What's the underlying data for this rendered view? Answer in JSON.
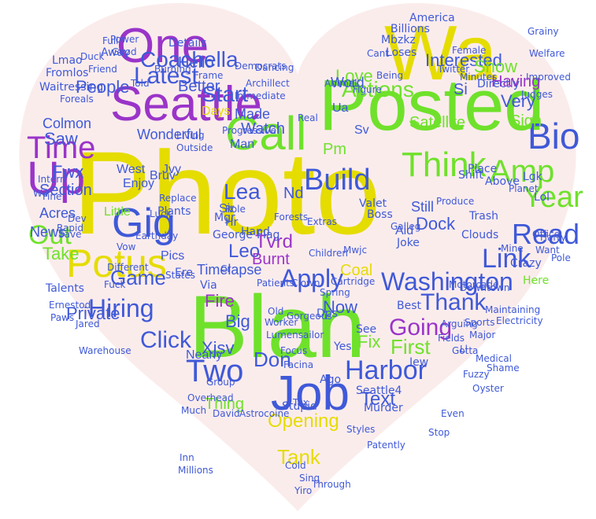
{
  "cloud": {
    "background": "#ffffff",
    "heart_fill": "#fbecec",
    "palette": {
      "yellow": "#e5dc00",
      "green": "#6fe12b",
      "blue": "#3f59d8",
      "purple": "#9a34c9",
      "light": "#c7d9ef"
    },
    "words": [
      {
        "text": "Photo",
        "color": "yellow"
      },
      {
        "text": "Blah",
        "color": "green"
      },
      {
        "text": "Posted",
        "color": "green"
      },
      {
        "text": "Wa",
        "color": "yellow"
      },
      {
        "text": "Seattle",
        "color": "purple"
      },
      {
        "text": "One",
        "color": "purple"
      },
      {
        "text": "Call",
        "color": "green"
      },
      {
        "text": "Job",
        "color": "blue"
      },
      {
        "text": "Gig",
        "color": "blue"
      },
      {
        "text": "Potus",
        "color": "yellow"
      },
      {
        "text": "Up",
        "color": "purple"
      },
      {
        "text": "Time",
        "color": "purple"
      },
      {
        "text": "Bio",
        "color": "blue"
      },
      {
        "text": "Amp",
        "color": "green"
      },
      {
        "text": "Think",
        "color": "green"
      },
      {
        "text": "Build",
        "color": "blue"
      },
      {
        "text": "Year",
        "color": "green"
      },
      {
        "text": "Read",
        "color": "blue"
      },
      {
        "text": "Link",
        "color": "blue"
      },
      {
        "text": "Washington",
        "color": "blue"
      },
      {
        "text": "Apply",
        "color": "blue"
      },
      {
        "text": "Thank",
        "color": "blue"
      },
      {
        "text": "Hiring",
        "color": "blue"
      },
      {
        "text": "Two",
        "color": "blue"
      },
      {
        "text": "Harbor",
        "color": "blue"
      },
      {
        "text": "Out",
        "color": "green"
      },
      {
        "text": "Latest",
        "color": "blue"
      },
      {
        "text": "Coachella",
        "color": "blue"
      },
      {
        "text": "Start",
        "color": "blue"
      },
      {
        "text": "Lea",
        "color": "blue"
      },
      {
        "text": "Actions",
        "color": "green"
      },
      {
        "text": "Interested",
        "color": "blue"
      },
      {
        "text": "Click",
        "color": "blue"
      },
      {
        "text": "Game",
        "color": "blue"
      },
      {
        "text": "Tank",
        "color": "yellow"
      },
      {
        "text": "Opening",
        "color": "yellow"
      },
      {
        "text": "Fire",
        "color": "purple"
      },
      {
        "text": "Don",
        "color": "blue"
      },
      {
        "text": "Going",
        "color": "purple"
      },
      {
        "text": "First",
        "color": "green"
      },
      {
        "text": "Fix",
        "color": "green"
      },
      {
        "text": "Text",
        "color": "blue"
      },
      {
        "text": "Take",
        "color": "green"
      },
      {
        "text": "News",
        "color": "blue"
      },
      {
        "text": "Section",
        "color": "blue"
      },
      {
        "text": "Saw",
        "color": "blue"
      },
      {
        "text": "Fwx",
        "color": "blue"
      },
      {
        "text": "People",
        "color": "blue"
      },
      {
        "text": "Better",
        "color": "blue"
      },
      {
        "text": "Hello",
        "color": "blue"
      },
      {
        "text": "Love",
        "color": "green"
      },
      {
        "text": "Show",
        "color": "green"
      },
      {
        "text": "Very",
        "color": "blue"
      },
      {
        "text": "Sign",
        "color": "green"
      },
      {
        "text": "Dock",
        "color": "blue"
      },
      {
        "text": "Still",
        "color": "blue"
      },
      {
        "text": "Big",
        "color": "blue"
      },
      {
        "text": "Tvrd",
        "color": "purple"
      },
      {
        "text": "Leo",
        "color": "blue"
      },
      {
        "text": "Xjsv",
        "color": "blue"
      },
      {
        "text": "Made",
        "color": "blue"
      },
      {
        "text": "Watch",
        "color": "blue"
      },
      {
        "text": "Man",
        "color": "blue"
      },
      {
        "text": "Having",
        "color": "purple"
      },
      {
        "text": "Directly",
        "color": "blue"
      },
      {
        "text": "Si",
        "color": "blue"
      },
      {
        "text": "Pm",
        "color": "green"
      },
      {
        "text": "Word",
        "color": "blue"
      },
      {
        "text": "Wonderful",
        "color": "blue"
      },
      {
        "text": "Satellite",
        "color": "green"
      },
      {
        "text": "Now",
        "color": "blue"
      },
      {
        "text": "Coal",
        "color": "yellow"
      },
      {
        "text": "Thing",
        "color": "green"
      },
      {
        "text": "Nearly",
        "color": "blue"
      },
      {
        "text": "Burnt",
        "color": "purple"
      },
      {
        "text": "Jvy",
        "color": "blue"
      },
      {
        "text": "Sir",
        "color": "blue"
      },
      {
        "text": "Hr",
        "color": "blue"
      },
      {
        "text": "Days",
        "color": "yellow"
      },
      {
        "text": "Little",
        "color": "green"
      },
      {
        "text": "Timelapse",
        "color": "blue"
      },
      {
        "text": "Pics",
        "color": "blue"
      },
      {
        "text": "Enjoy",
        "color": "blue"
      },
      {
        "text": "West",
        "color": "blue"
      },
      {
        "text": "Bruv",
        "color": "blue"
      },
      {
        "text": "Acres",
        "color": "blue"
      },
      {
        "text": "Colmon",
        "color": "blue"
      },
      {
        "text": "Waitressing",
        "color": "blue"
      },
      {
        "text": "Fromlos",
        "color": "blue"
      },
      {
        "text": "Lmao",
        "color": "blue"
      },
      {
        "text": "Away",
        "color": "blue"
      },
      {
        "text": "Full",
        "color": "blue"
      },
      {
        "text": "Details",
        "color": "blue"
      },
      {
        "text": "Billions",
        "color": "blue"
      },
      {
        "text": "America",
        "color": "blue"
      },
      {
        "text": "Mbzkz",
        "color": "blue"
      },
      {
        "text": "Loses",
        "color": "blue"
      },
      {
        "text": "Lgk",
        "color": "blue"
      },
      {
        "text": "Lol",
        "color": "blue"
      },
      {
        "text": "Place",
        "color": "blue"
      },
      {
        "text": "Above",
        "color": "blue"
      },
      {
        "text": "Shift",
        "color": "blue"
      },
      {
        "text": "Trash",
        "color": "blue"
      },
      {
        "text": "Clouds",
        "color": "blue"
      },
      {
        "text": "Aid",
        "color": "blue"
      },
      {
        "text": "Joke",
        "color": "blue"
      },
      {
        "text": "Galleg",
        "color": "blue"
      },
      {
        "text": "Valet",
        "color": "blue"
      },
      {
        "text": "Boss",
        "color": "blue"
      },
      {
        "text": "Ua",
        "color": "blue"
      },
      {
        "text": "Sv",
        "color": "blue"
      },
      {
        "text": "Nd",
        "color": "blue"
      },
      {
        "text": "Mgr",
        "color": "blue"
      },
      {
        "text": "Role",
        "color": "blue"
      },
      {
        "text": "Flag",
        "color": "blue"
      },
      {
        "text": "Plants",
        "color": "blue"
      },
      {
        "text": "George",
        "color": "blue"
      },
      {
        "text": "Hand",
        "color": "blue"
      },
      {
        "text": "Via",
        "color": "blue"
      },
      {
        "text": "Ere",
        "color": "blue"
      },
      {
        "text": "Ago",
        "color": "blue"
      },
      {
        "text": "Dps",
        "color": "blue"
      },
      {
        "text": "Yes",
        "color": "blue"
      },
      {
        "text": "See",
        "color": "blue"
      },
      {
        "text": "Best",
        "color": "blue"
      },
      {
        "text": "Iew",
        "color": "blue"
      },
      {
        "text": "Seattle4",
        "color": "blue"
      },
      {
        "text": "Murder",
        "color": "blue"
      },
      {
        "text": "Stupid",
        "color": "blue"
      },
      {
        "text": "David",
        "color": "blue"
      },
      {
        "text": "Inn",
        "color": "blue"
      },
      {
        "text": "Millions",
        "color": "blue"
      },
      {
        "text": "States",
        "color": "blue"
      },
      {
        "text": "Talents",
        "color": "blue"
      },
      {
        "text": "Ernestod",
        "color": "blue"
      },
      {
        "text": "Paws",
        "color": "blue"
      },
      {
        "text": "Jared",
        "color": "blue"
      },
      {
        "text": "Dev",
        "color": "blue"
      },
      {
        "text": "Private",
        "color": "blue"
      },
      {
        "text": "Crazy",
        "color": "blue"
      },
      {
        "text": "Here",
        "color": "green"
      },
      {
        "text": "Office",
        "color": "blue"
      },
      {
        "text": "Want",
        "color": "blue"
      },
      {
        "text": "Harry",
        "color": "blue"
      },
      {
        "text": "Mine",
        "color": "blue"
      },
      {
        "text": "Pole",
        "color": "blue"
      },
      {
        "text": "Maintaining",
        "color": "blue"
      },
      {
        "text": "Electricity",
        "color": "blue"
      },
      {
        "text": "Motorcade",
        "color": "blue"
      },
      {
        "text": "Downtown",
        "color": "blue"
      },
      {
        "text": "Produce",
        "color": "blue"
      },
      {
        "text": "Planet",
        "color": "blue"
      },
      {
        "text": "Judges",
        "color": "blue"
      },
      {
        "text": "Improved",
        "color": "blue"
      },
      {
        "text": "Welfare",
        "color": "blue"
      },
      {
        "text": "Grainy",
        "color": "blue"
      },
      {
        "text": "Female",
        "color": "blue"
      },
      {
        "text": "Twitter",
        "color": "blue"
      },
      {
        "text": "Being",
        "color": "blue"
      },
      {
        "text": "Cant",
        "color": "blue"
      },
      {
        "text": "Figure",
        "color": "blue"
      },
      {
        "text": "Animal",
        "color": "blue"
      },
      {
        "text": "Minutes",
        "color": "blue"
      },
      {
        "text": "Real",
        "color": "blue"
      },
      {
        "text": "Progressive",
        "color": "blue"
      },
      {
        "text": "Living",
        "color": "blue"
      },
      {
        "text": "Outside",
        "color": "blue"
      },
      {
        "text": "Archillect",
        "color": "blue"
      },
      {
        "text": "Immediate",
        "color": "blue"
      },
      {
        "text": "Dancing",
        "color": "blue"
      },
      {
        "text": "Democrats",
        "color": "blue"
      },
      {
        "text": "Frame",
        "color": "blue"
      },
      {
        "text": "Told",
        "color": "blue"
      },
      {
        "text": "Burning",
        "color": "blue"
      },
      {
        "text": "Friend",
        "color": "blue"
      },
      {
        "text": "Power",
        "color": "blue"
      },
      {
        "text": "Good",
        "color": "blue"
      },
      {
        "text": "Duck",
        "color": "blue"
      },
      {
        "text": "Foreals",
        "color": "blue"
      },
      {
        "text": "Intern",
        "color": "blue"
      },
      {
        "text": "Wu",
        "color": "blue"
      },
      {
        "text": "Fine",
        "color": "blue"
      },
      {
        "text": "Save",
        "color": "blue"
      },
      {
        "text": "Rapid",
        "color": "blue"
      },
      {
        "text": "Replace",
        "color": "blue"
      },
      {
        "text": "Luck",
        "color": "blue"
      },
      {
        "text": "Earthday",
        "color": "blue"
      },
      {
        "text": "Vow",
        "color": "blue"
      },
      {
        "text": "Different",
        "color": "blue"
      },
      {
        "text": "Fuck",
        "color": "blue"
      },
      {
        "text": "Warehouse",
        "color": "blue"
      },
      {
        "text": "Cr",
        "color": "blue"
      },
      {
        "text": "Patients",
        "color": "blue"
      },
      {
        "text": "Clown",
        "color": "blue"
      },
      {
        "text": "Gorgeous",
        "color": "blue"
      },
      {
        "text": "Forests",
        "color": "blue"
      },
      {
        "text": "Extras",
        "color": "blue"
      },
      {
        "text": "Children",
        "color": "blue"
      },
      {
        "text": "Mwjc",
        "color": "blue"
      },
      {
        "text": "Cartridge",
        "color": "blue"
      },
      {
        "text": "Spring",
        "color": "blue"
      },
      {
        "text": "Old",
        "color": "blue"
      },
      {
        "text": "Worker",
        "color": "blue"
      },
      {
        "text": "Lumensailor",
        "color": "blue"
      },
      {
        "text": "Focus",
        "color": "blue"
      },
      {
        "text": "Cold",
        "color": "blue"
      },
      {
        "text": "Sing",
        "color": "blue"
      },
      {
        "text": "Through",
        "color": "blue"
      },
      {
        "text": "Yiro",
        "color": "blue"
      },
      {
        "text": "Styles",
        "color": "blue"
      },
      {
        "text": "Patently",
        "color": "blue"
      },
      {
        "text": "Stop",
        "color": "blue"
      },
      {
        "text": "Even",
        "color": "blue"
      },
      {
        "text": "Ll",
        "color": "blue"
      },
      {
        "text": "Medical",
        "color": "blue"
      },
      {
        "text": "Fuzzy",
        "color": "blue"
      },
      {
        "text": "Oyster",
        "color": "blue"
      },
      {
        "text": "Shame",
        "color": "blue"
      },
      {
        "text": "Sports",
        "color": "blue"
      },
      {
        "text": "Major",
        "color": "blue"
      },
      {
        "text": "Arguing",
        "color": "blue"
      },
      {
        "text": "Fields",
        "color": "blue"
      },
      {
        "text": "Gotta",
        "color": "blue"
      },
      {
        "text": "Facina",
        "color": "blue"
      },
      {
        "text": "Tax",
        "color": "blue"
      },
      {
        "text": "Group",
        "color": "blue"
      },
      {
        "text": "Overhead",
        "color": "blue"
      },
      {
        "text": "Much",
        "color": "blue"
      },
      {
        "text": "Astrocoine",
        "color": "blue"
      }
    ]
  }
}
